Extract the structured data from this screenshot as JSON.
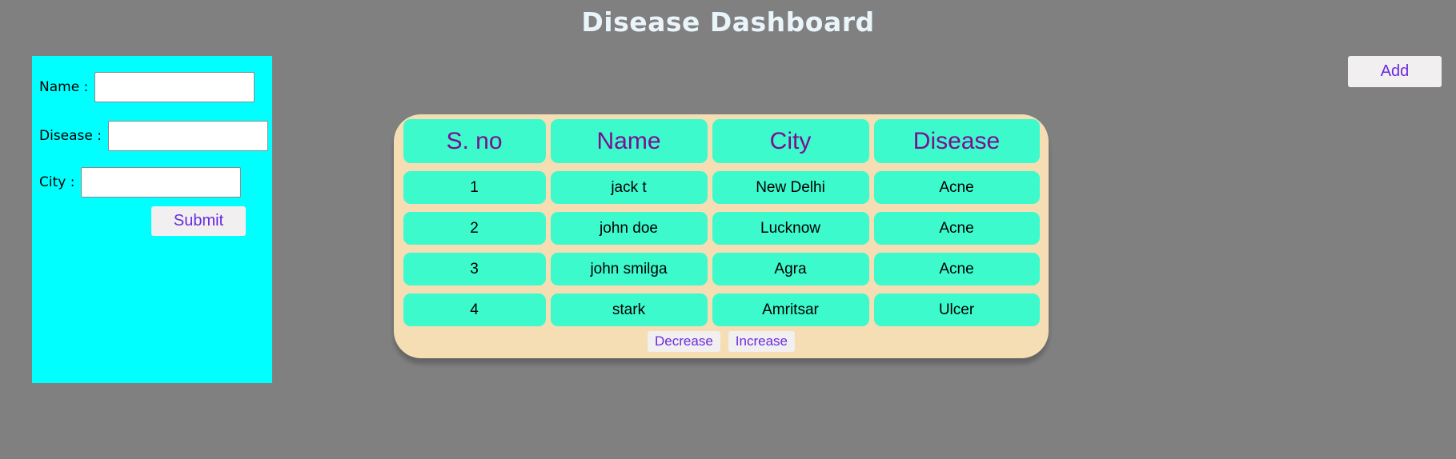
{
  "page": {
    "title": "Disease Dashboard",
    "background_color": "#808080",
    "title_color": "#EAF4FB"
  },
  "toolbar": {
    "add_label": "Add"
  },
  "form": {
    "panel_color": "#00FFFF",
    "fields": [
      {
        "label": "Name :",
        "value": ""
      },
      {
        "label": "Disease :",
        "value": ""
      },
      {
        "label": "City :",
        "value": ""
      }
    ],
    "submit_label": "Submit"
  },
  "table": {
    "card_color": "#F5DEB3",
    "cell_color": "#3CFACC",
    "header_text_color": "#7B0F92",
    "button_text_color": "#6B2BDF",
    "columns": [
      "S. no",
      "Name",
      "City",
      "Disease"
    ],
    "rows": [
      [
        "1",
        "jack t",
        "New Delhi",
        "Acne"
      ],
      [
        "2",
        "john doe",
        "Lucknow",
        "Acne"
      ],
      [
        "3",
        "john smilga",
        "Agra",
        "Acne"
      ],
      [
        "4",
        "stark",
        "Amritsar",
        "Ulcer"
      ]
    ],
    "decrease_label": "Decrease",
    "increase_label": "Increase"
  }
}
